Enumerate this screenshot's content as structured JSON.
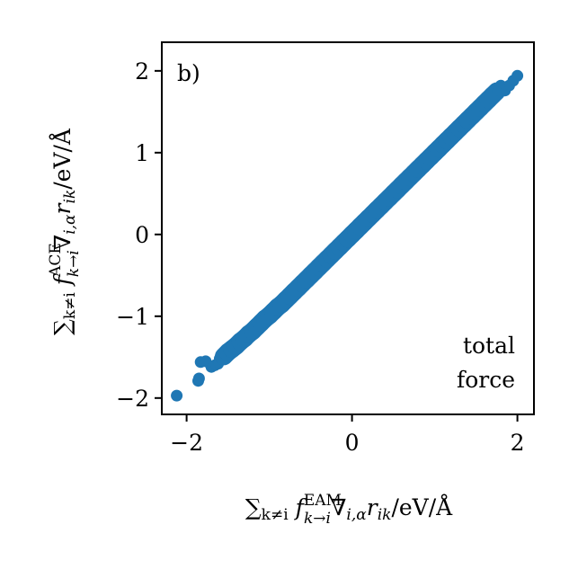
{
  "chart_data": {
    "type": "scatter",
    "panel_label": "b)",
    "annotation": [
      "total",
      "force"
    ],
    "xlabel": {
      "main1": "∑",
      "sub1": "k≠i",
      "main2": " f",
      "sup": "EAM",
      "sub2": "k→i",
      "main3": "∇",
      "sub3": "i,α",
      "main4": "r",
      "sub4": "ik",
      "main5": "/eV/Å"
    },
    "ylabel": {
      "main1": "∑",
      "sub1": "k≠i",
      "main2": " f",
      "sup": "ACE",
      "sub2": "k→i",
      "main3": "∇",
      "sub3": "i,α",
      "main4": "r",
      "sub4": "ik",
      "main5": "/eV/Å"
    },
    "xlim": [
      -2.3,
      2.2
    ],
    "ylim": [
      -2.2,
      2.35
    ],
    "xticks": [
      -2,
      0,
      2
    ],
    "xtick_labels": [
      "−2",
      "0",
      "2"
    ],
    "yticks": [
      -2,
      -1,
      0,
      1,
      2
    ],
    "ytick_labels": [
      "−2",
      "−1",
      "0",
      "1",
      "2"
    ],
    "grid": false,
    "marker_color": "#1f77b4",
    "series": [
      {
        "x": [
          -2.12,
          -1.86,
          -1.85,
          -1.83,
          -1.77,
          -1.7,
          -1.66,
          -1.62,
          -1.6,
          -1.55,
          -1.5,
          -1.45,
          -1.4,
          -1.35,
          -1.3,
          -1.25,
          -1.2,
          -1.15,
          -1.1,
          -1.05,
          -1.0,
          -0.95,
          -0.9,
          -0.85,
          -0.8,
          -0.75,
          -0.7,
          -0.65,
          -0.6,
          -0.55,
          -0.5,
          -0.45,
          -0.4,
          -0.35,
          -0.3,
          -0.25,
          -0.2,
          -0.15,
          -0.1,
          -0.05,
          0.0,
          0.05,
          0.1,
          0.15,
          0.2,
          0.25,
          0.3,
          0.35,
          0.4,
          0.45,
          0.5,
          0.55,
          0.6,
          0.65,
          0.7,
          0.75,
          0.8,
          0.85,
          0.9,
          0.95,
          1.0,
          1.05,
          1.1,
          1.15,
          1.2,
          1.25,
          1.3,
          1.35,
          1.4,
          1.45,
          1.5,
          1.55,
          1.6,
          1.65,
          1.7,
          1.75,
          1.8,
          1.85,
          1.9,
          1.95,
          2.0
        ],
        "y": [
          -1.97,
          -1.79,
          -1.76,
          -1.56,
          -1.55,
          -1.62,
          -1.6,
          -1.58,
          -1.52,
          -1.49,
          -1.44,
          -1.4,
          -1.36,
          -1.31,
          -1.27,
          -1.22,
          -1.18,
          -1.13,
          -1.08,
          -1.03,
          -0.99,
          -0.94,
          -0.89,
          -0.85,
          -0.8,
          -0.75,
          -0.7,
          -0.65,
          -0.6,
          -0.55,
          -0.5,
          -0.45,
          -0.4,
          -0.35,
          -0.3,
          -0.25,
          -0.2,
          -0.15,
          -0.1,
          -0.05,
          0.0,
          0.05,
          0.1,
          0.15,
          0.2,
          0.25,
          0.3,
          0.35,
          0.4,
          0.45,
          0.5,
          0.55,
          0.6,
          0.65,
          0.7,
          0.75,
          0.8,
          0.85,
          0.9,
          0.95,
          1.0,
          1.05,
          1.1,
          1.15,
          1.2,
          1.25,
          1.3,
          1.35,
          1.4,
          1.45,
          1.5,
          1.55,
          1.6,
          1.65,
          1.7,
          1.75,
          1.82,
          1.76,
          1.82,
          1.88,
          1.94
        ]
      }
    ]
  }
}
